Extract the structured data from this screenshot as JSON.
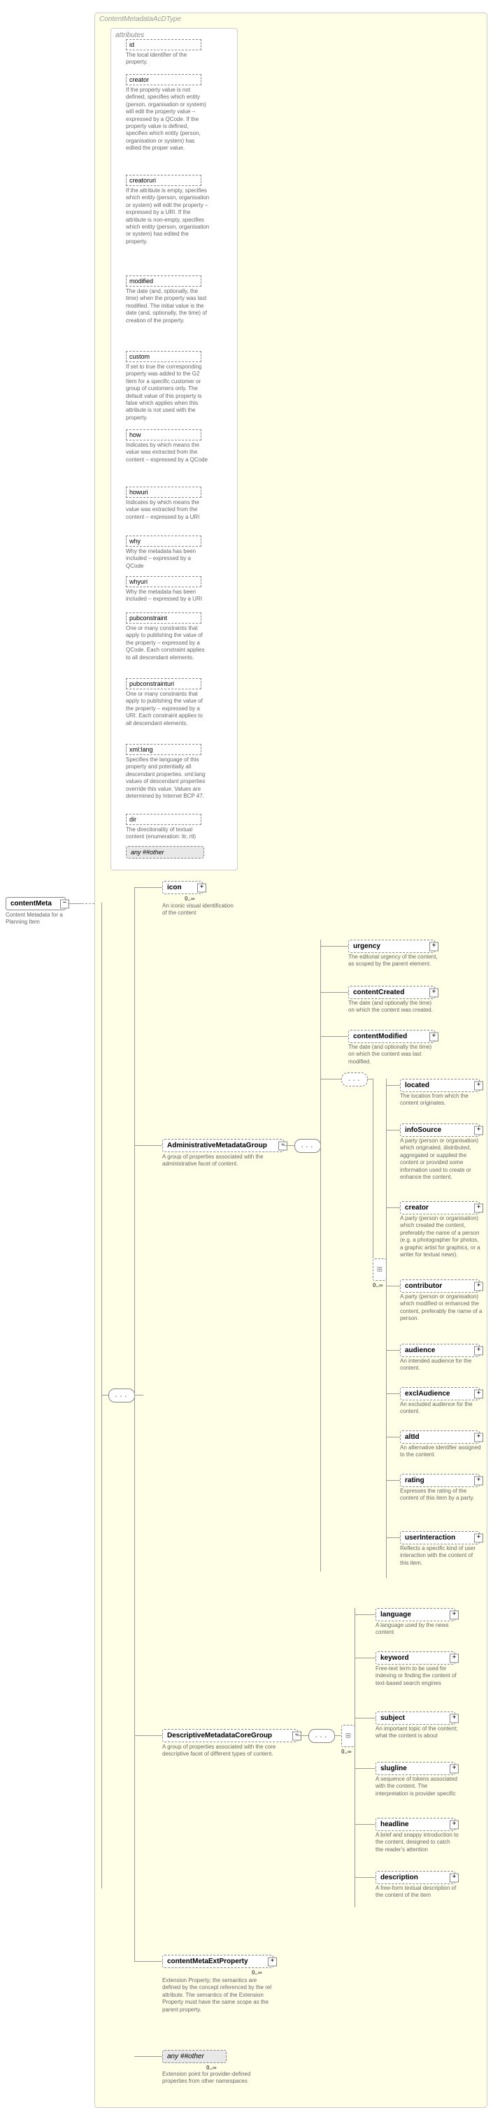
{
  "type_name": "ContentMetadataAcDType",
  "root": {
    "name": "contentMeta",
    "desc": "Content Metadata for a Planning Item",
    "mult": ""
  },
  "attributes_label": "attributes",
  "attrs": [
    {
      "name": "id",
      "desc": "The local identifier of the property."
    },
    {
      "name": "creator",
      "desc": "If the property value is not defined, specifies which entity (person, organisation or system) will edit the property value – expressed by a QCode. If the property value is defined, specifies which entity (person, organisation or system) has edited the proper value."
    },
    {
      "name": "creatoruri",
      "desc": "If the attribute is empty, specifies which entity (person, organisation or system) will edit the property – expressed by a URI. If the attribute is non-empty, specifies which entity (person, organisation or system) has edited the property."
    },
    {
      "name": "modified",
      "desc": "The date (and, optionally, the time) when the property was last modified. The initial value is the date (and, optionally, the time) of creation of the property."
    },
    {
      "name": "custom",
      "desc": "If set to true the corresponding property was added to the G2 Item for a specific customer or group of customers only. The default value of this property is false which applies when this attribute is not used with the property."
    },
    {
      "name": "how",
      "desc": "Indicates by which means the value was extracted from the content – expressed by a QCode"
    },
    {
      "name": "howuri",
      "desc": "Indicates by which means the value was extracted from the content – expressed by a URI"
    },
    {
      "name": "why",
      "desc": "Why the metadata has been included – expressed by a QCode"
    },
    {
      "name": "whyuri",
      "desc": "Why the metadata has been included – expressed by a URI"
    },
    {
      "name": "pubconstraint",
      "desc": "One or many constraints that apply to publishing the value of the property – expressed by a QCode. Each constraint applies to all descendant elements."
    },
    {
      "name": "pubconstrainturi",
      "desc": "One or many constraints that apply to publishing the value of the property – expressed by a URI. Each constraint applies to all descendant elements."
    },
    {
      "name": "xml:lang",
      "desc": "Specifies the language of this property and potentially all descendant properties. xml:lang values of descendant properties override this value. Values are determined by Internet BCP 47."
    },
    {
      "name": "dir",
      "desc": "The directionality of textual content (enumeration: ltr, rtl)"
    }
  ],
  "attr_any": "any ##other",
  "icon": {
    "name": "icon",
    "desc": "An iconic visual identification of the content",
    "mult": "0..∞"
  },
  "amg": {
    "name": "AdministrativeMetadataGroup",
    "desc": "A group of properties associated with the administrative facet of content."
  },
  "amg_items": [
    {
      "name": "urgency",
      "desc": "The editorial urgency of the content, as scoped by the parent element."
    },
    {
      "name": "contentCreated",
      "desc": "The date (and optionally the time) on which the content was created."
    },
    {
      "name": "contentModified",
      "desc": "The date (and optionally the time) on which the content was last modified."
    }
  ],
  "amg_rep": [
    {
      "name": "located",
      "desc": "The location from which the content originates."
    },
    {
      "name": "infoSource",
      "desc": "A party (person or organisation) which originated, distributed, aggregated or supplied the content or provided some information used to create or enhance the content."
    },
    {
      "name": "creator",
      "desc": "A party (person or organisation) which created the content, preferably the name of a person (e.g. a photographer for photos, a graphic artist for graphics, or a writer for textual news)."
    },
    {
      "name": "contributor",
      "desc": "A party (person or organisation) which modified or enhanced the content, preferably the name of a person."
    },
    {
      "name": "audience",
      "desc": "An intended audience for the content."
    },
    {
      "name": "exclAudience",
      "desc": "An excluded audience for the content."
    },
    {
      "name": "altId",
      "desc": "An alternative identifier assigned to the content."
    },
    {
      "name": "rating",
      "desc": "Expresses the rating of the content of this item by a party."
    },
    {
      "name": "userInteraction",
      "desc": "Reflects a specific kind of user interaction with the content of this item."
    }
  ],
  "dmg": {
    "name": "DescriptiveMetadataCoreGroup",
    "desc": "A group of properties associated with the core descriptive facet of different types of content.",
    "mult": "0..∞"
  },
  "dmg_items": [
    {
      "name": "language",
      "desc": "A language used by the news content"
    },
    {
      "name": "keyword",
      "desc": "Free-text term to be used for indexing or finding the content of text-based search engines"
    },
    {
      "name": "subject",
      "desc": "An important topic of the content; what the content is about"
    },
    {
      "name": "slugline",
      "desc": "A sequence of tokens associated with the content. The interpretation is provider specific"
    },
    {
      "name": "headline",
      "desc": "A brief and snappy introduction to the content, designed to catch the reader's attention"
    },
    {
      "name": "description",
      "desc": "A free-form textual description of the content of the item"
    }
  ],
  "ext": {
    "name": "contentMetaExtProperty",
    "desc": "Extension Property; the semantics are defined by the concept referenced by the rel attribute. The semantics of the Extension Property must have the same scope as the parent property.",
    "mult": "0..∞"
  },
  "bottom_any": {
    "name": "any ##other",
    "desc": "Extension point for provider-defined properties from other namespaces",
    "mult": "0..∞"
  }
}
